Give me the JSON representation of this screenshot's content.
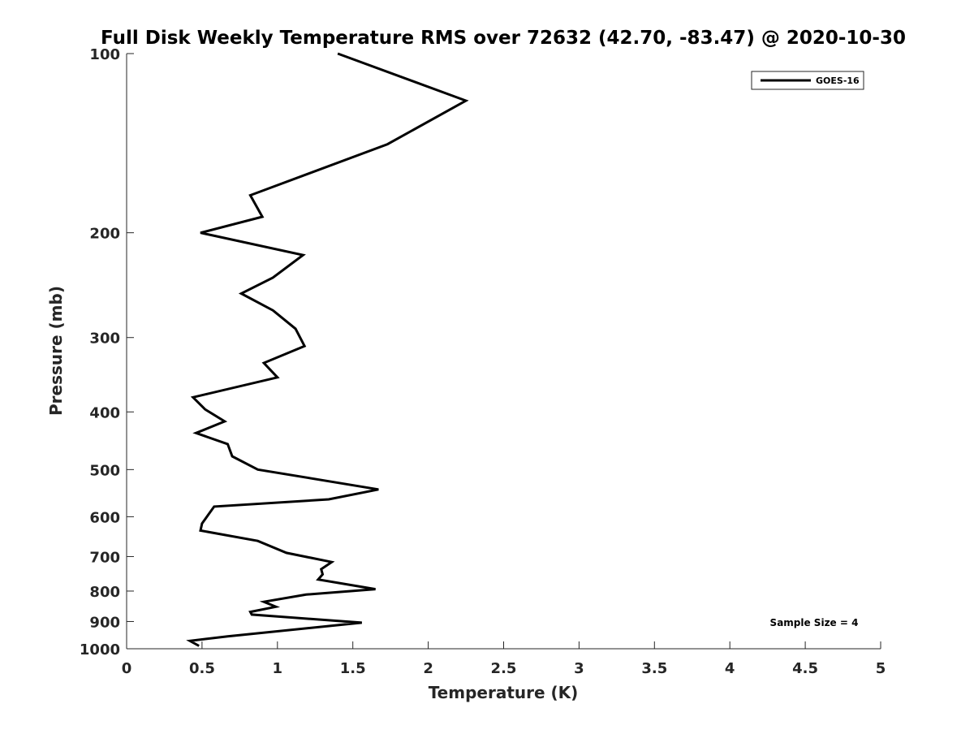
{
  "chart_data": {
    "type": "line",
    "title": "Full Disk Weekly Temperature RMS over 72632 (42.70, -83.47) @ 2020-10-30",
    "xlabel": "Temperature (K)",
    "ylabel": "Pressure (mb)",
    "xlim": [
      0,
      5
    ],
    "ylim": [
      1000,
      100
    ],
    "y_scale": "log",
    "y_reversed": true,
    "x_ticks": [
      "0",
      "0.5",
      "1",
      "1.5",
      "2",
      "2.5",
      "3",
      "3.5",
      "4",
      "4.5",
      "5"
    ],
    "y_ticks": [
      "100",
      "200",
      "300",
      "400",
      "500",
      "600",
      "700",
      "800",
      "900",
      "1000"
    ],
    "grid": false,
    "legend_position": "top-right",
    "annotation": "Sample Size = 4",
    "series": [
      {
        "name": "GOES-16",
        "color": "#000000",
        "points": [
          [
            1.4,
            100
          ],
          [
            2.25,
            120
          ],
          [
            1.73,
            142
          ],
          [
            0.82,
            173
          ],
          [
            0.9,
            188
          ],
          [
            0.49,
            200
          ],
          [
            1.17,
            218
          ],
          [
            0.97,
            238
          ],
          [
            0.76,
            253
          ],
          [
            0.97,
            270
          ],
          [
            1.12,
            290
          ],
          [
            1.18,
            310
          ],
          [
            0.91,
            331
          ],
          [
            1.0,
            350
          ],
          [
            0.44,
            378
          ],
          [
            0.52,
            396
          ],
          [
            0.65,
            415
          ],
          [
            0.46,
            434
          ],
          [
            0.67,
            453
          ],
          [
            0.7,
            475
          ],
          [
            0.87,
            500
          ],
          [
            1.67,
            540
          ],
          [
            1.34,
            561
          ],
          [
            0.58,
            577
          ],
          [
            0.5,
            616
          ],
          [
            0.49,
            633
          ],
          [
            0.87,
            659
          ],
          [
            1.06,
            690
          ],
          [
            1.36,
            715
          ],
          [
            1.29,
            735
          ],
          [
            1.3,
            750
          ],
          [
            1.27,
            765
          ],
          [
            1.65,
            794
          ],
          [
            1.19,
            811
          ],
          [
            0.91,
            834
          ],
          [
            0.99,
            850
          ],
          [
            0.82,
            867
          ],
          [
            0.83,
            876
          ],
          [
            1.56,
            904
          ],
          [
            0.67,
            953
          ],
          [
            0.42,
            970
          ],
          [
            0.48,
            989
          ]
        ]
      }
    ]
  }
}
